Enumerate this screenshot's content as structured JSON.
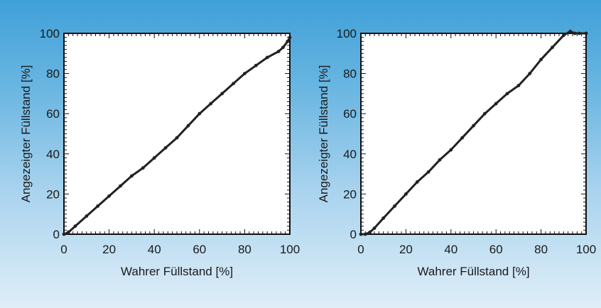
{
  "chart_data": [
    {
      "type": "line",
      "xlabel": "Wahrer Füllstand [%]",
      "ylabel": "Angezeigter Füllstand [%]",
      "xlim": [
        0,
        100
      ],
      "ylim": [
        0,
        100
      ],
      "x_ticks": [
        "0",
        "20",
        "40",
        "60",
        "80",
        "100"
      ],
      "y_ticks": [
        "0",
        "20",
        "40",
        "60",
        "80",
        "100"
      ],
      "grid": false,
      "series": [
        {
          "color": "#222222",
          "x": [
            0,
            2,
            5,
            10,
            15,
            20,
            25,
            30,
            35,
            40,
            45,
            50,
            55,
            60,
            65,
            70,
            75,
            80,
            85,
            90,
            95,
            97,
            99,
            100
          ],
          "y": [
            0,
            1,
            4,
            9,
            14,
            19,
            24,
            29,
            33,
            38,
            43,
            48,
            54,
            60,
            65,
            70,
            75,
            80,
            84,
            88,
            91,
            93,
            96,
            98
          ]
        }
      ]
    },
    {
      "type": "line",
      "xlabel": "Wahrer Füllstand [%]",
      "ylabel": "Angezeigter Füllstand [%]",
      "xlim": [
        0,
        100
      ],
      "ylim": [
        0,
        100
      ],
      "x_ticks": [
        "0",
        "20",
        "40",
        "60",
        "80",
        "100"
      ],
      "y_ticks": [
        "0",
        "20",
        "40",
        "60",
        "80",
        "100"
      ],
      "grid": false,
      "series": [
        {
          "color": "#222222",
          "x": [
            0,
            2,
            4,
            6,
            10,
            15,
            20,
            25,
            30,
            35,
            40,
            45,
            50,
            55,
            60,
            65,
            70,
            75,
            80,
            85,
            90,
            93,
            95,
            97,
            100
          ],
          "y": [
            0,
            0,
            1,
            3,
            8,
            14,
            20,
            26,
            31,
            37,
            42,
            48,
            54,
            60,
            65,
            70,
            74,
            80,
            87,
            93,
            99,
            101,
            100,
            100,
            100
          ]
        }
      ]
    }
  ]
}
